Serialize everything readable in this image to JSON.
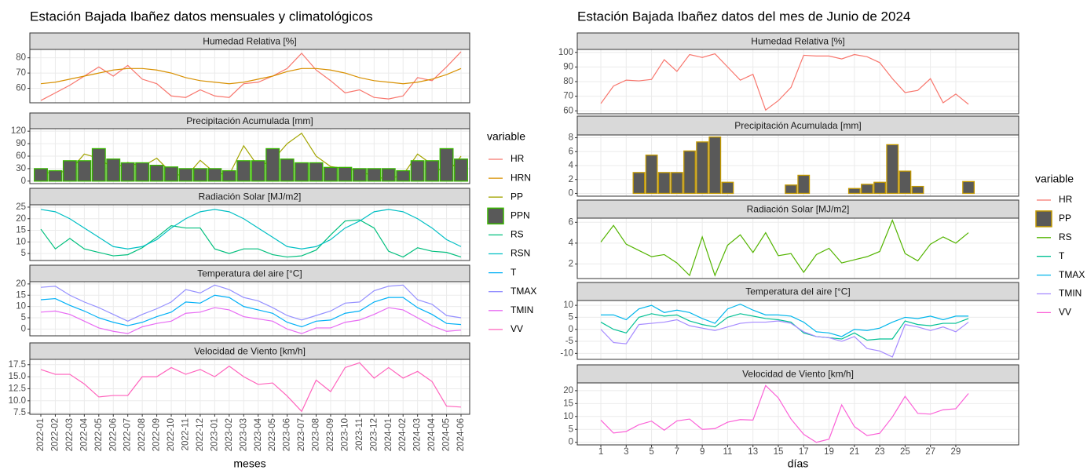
{
  "chart_data": [
    {
      "type": "line",
      "title": "Estación Bajada Ibañez datos mensuales y climatológicos",
      "xlabel": "meses",
      "legend_title": "variable",
      "categories": [
        "2022-01",
        "2022-02",
        "2022-03",
        "2022-04",
        "2022-05",
        "2022-06",
        "2022-07",
        "2022-08",
        "2022-09",
        "2022-10",
        "2022-11",
        "2022-12",
        "2023-01",
        "2023-02",
        "2023-03",
        "2023-04",
        "2023-05",
        "2023-06",
        "2023-07",
        "2023-08",
        "2023-09",
        "2023-10",
        "2023-11",
        "2023-12",
        "2024-01",
        "2024-02",
        "2024-03",
        "2024-04",
        "2024-05",
        "2024-06"
      ],
      "panels": [
        {
          "strip": "Humedad Relativa [%]",
          "ylim": [
            50.5,
            85.5
          ],
          "yticks": [
            60,
            70,
            80
          ],
          "series": [
            {
              "name": "HR",
              "color": "#F8766D",
              "values": [
                52,
                57,
                62,
                68,
                74,
                68,
                75,
                66,
                63,
                55,
                54,
                59,
                55,
                54,
                63,
                64,
                68,
                73,
                83,
                72,
                65,
                57,
                59,
                54,
                53,
                55,
                67,
                65,
                74,
                84
              ]
            },
            {
              "name": "HRN",
              "color": "#D89000",
              "values": [
                63,
                64,
                66,
                68,
                70,
                72,
                73,
                73,
                72,
                70,
                67,
                65,
                64,
                63,
                64,
                66,
                68,
                71,
                73,
                73,
                72,
                70,
                67,
                65,
                64,
                63,
                64,
                66,
                69,
                73
              ]
            }
          ]
        },
        {
          "strip": "Precipitación Acumulada [mm]",
          "ylim": [
            -6,
            126
          ],
          "yticks": [
            0,
            30,
            60,
            90,
            120
          ],
          "series": [
            {
              "name": "PP",
              "color": "#A3A500",
              "values": [
                20,
                20,
                25,
                65,
                55,
                30,
                45,
                35,
                55,
                20,
                10,
                50,
                20,
                15,
                85,
                35,
                50,
                90,
                115,
                60,
                35,
                30,
                25,
                10,
                5,
                15,
                65,
                40,
                15,
                60
              ]
            },
            {
              "name": "PPN",
              "type": "bar",
              "color": "#39B600",
              "fill": "#595959",
              "values": [
                30,
                25,
                49,
                49,
                78,
                53,
                44,
                44,
                38,
                34,
                30,
                30,
                30,
                25,
                49,
                49,
                78,
                53,
                44,
                44,
                33,
                33,
                30,
                30,
                30,
                25,
                49,
                49,
                78,
                53
              ]
            }
          ]
        },
        {
          "strip": "Radiación Solar [MJ/m2]",
          "ylim": [
            2,
            26
          ],
          "yticks": [
            5,
            10,
            15,
            20,
            25
          ],
          "series": [
            {
              "name": "RS",
              "color": "#00BF7D",
              "values": [
                15.5,
                7,
                11.5,
                7,
                5.5,
                4,
                4.5,
                7.5,
                12,
                17,
                16,
                16,
                7,
                5,
                7,
                7,
                4.5,
                3.5,
                4,
                6.5,
                13,
                19,
                19.5,
                16,
                6,
                3.5,
                7.5,
                6,
                5.5,
                3.5
              ]
            },
            {
              "name": "RSN",
              "color": "#00BFC4",
              "values": [
                24,
                23,
                20,
                16,
                12,
                8,
                7,
                8,
                11,
                16,
                20,
                23,
                24,
                23,
                20,
                16,
                12,
                8,
                7,
                8,
                11,
                16,
                19,
                23,
                24,
                23,
                20,
                16,
                11,
                8
              ]
            }
          ]
        },
        {
          "strip": "Temperatura del aire [°C]",
          "ylim": [
            -3,
            21
          ],
          "yticks": [
            0,
            5,
            10,
            15,
            20
          ],
          "series": [
            {
              "name": "T",
              "color": "#00B0F6",
              "values": [
                13,
                13.5,
                10.5,
                8,
                5,
                3,
                1.5,
                3,
                5.5,
                7.5,
                12,
                11.5,
                15,
                14,
                10,
                8.5,
                7,
                3,
                1,
                3.5,
                4,
                7,
                8,
                12,
                14,
                14,
                9.5,
                6.5,
                2.5,
                2
              ]
            },
            {
              "name": "TMAX",
              "color": "#9590FF",
              "values": [
                18.5,
                19,
                15,
                12,
                9.5,
                6.5,
                3.5,
                6.5,
                9,
                12,
                17.5,
                16,
                19.5,
                17.5,
                14,
                12.5,
                9.5,
                6,
                4,
                6,
                8,
                11.5,
                12,
                17,
                19,
                19.5,
                13,
                11,
                6,
                5
              ]
            },
            {
              "name": "TMIN",
              "color": "#E76BF3",
              "values": [
                7.5,
                8,
                6.5,
                3.5,
                0.5,
                -1,
                -2,
                1,
                2.5,
                3.5,
                7,
                7.5,
                9.5,
                8.5,
                5.5,
                4.5,
                3.5,
                0,
                -2,
                0.5,
                0.5,
                3,
                4,
                6.5,
                9.5,
                8.5,
                5,
                1.5,
                -1,
                -0.5
              ]
            }
          ]
        },
        {
          "strip": "Velocidad de Viento [km/h]",
          "ylim": [
            7.2,
            18.6
          ],
          "yticks": [
            7.5,
            {
              "value": 10,
              "label": "10.0"
            },
            12.5,
            {
              "value": 15,
              "label": "15.0"
            },
            17.5
          ],
          "series": [
            {
              "name": "VV",
              "color": "#FF62BC",
              "values": [
                16.5,
                15.5,
                15.5,
                13.5,
                10.8,
                11.1,
                11.1,
                15,
                15,
                16.9,
                15.5,
                16.5,
                15,
                17.2,
                15,
                13.4,
                13.7,
                11,
                7.8,
                14.3,
                11.9,
                16.9,
                17.9,
                14.7,
                16.9,
                14.7,
                16.1,
                14,
                8.9,
                8.7
              ]
            }
          ]
        }
      ]
    },
    {
      "type": "line",
      "title": "Estación Bajada Ibañez datos del mes de Junio de 2024",
      "xlabel": "días",
      "legend_title": "variable",
      "x": [
        1,
        2,
        3,
        4,
        5,
        6,
        7,
        8,
        9,
        10,
        11,
        12,
        13,
        14,
        15,
        16,
        17,
        18,
        19,
        20,
        21,
        22,
        23,
        24,
        25,
        26,
        27,
        28,
        29,
        30
      ],
      "xlim": [
        -0.86,
        33.96
      ],
      "xticks": [
        1,
        3,
        5,
        7,
        9,
        11,
        13,
        15,
        17,
        19,
        21,
        23,
        25,
        27,
        29
      ],
      "panels": [
        {
          "strip": "Humedad Relativa [%]",
          "ylim": [
            58,
            102
          ],
          "yticks": [
            60,
            70,
            80,
            90,
            100
          ],
          "series": [
            {
              "name": "HR",
              "color": "#F8766D",
              "values": [
                65,
                77,
                81,
                80.5,
                81.5,
                95,
                87,
                98.5,
                96.5,
                99,
                90,
                81,
                85,
                60.5,
                67,
                76,
                98,
                97.5,
                97.5,
                95.5,
                98.5,
                97,
                93,
                82,
                72.5,
                74,
                82,
                65.5,
                71.5,
                64.5
              ]
            }
          ]
        },
        {
          "strip": "Precipitación Acumulada [mm]",
          "ylim": [
            -0.4,
            8.4
          ],
          "yticks": [
            0,
            2,
            4,
            6,
            8
          ],
          "series": [
            {
              "name": "PP",
              "type": "bar",
              "color": "#C49A00",
              "fill": "#595959",
              "values": [
                0,
                0,
                0,
                3,
                5.5,
                3,
                3,
                6.1,
                7.4,
                8.1,
                1.6,
                0,
                0,
                0,
                0,
                1.2,
                2.6,
                0,
                0,
                0,
                0.7,
                1.3,
                1.6,
                7,
                3.2,
                1,
                0,
                0,
                0,
                1.7
              ]
            }
          ]
        },
        {
          "strip": "Radiación Solar [MJ/m2]",
          "ylim": [
            0.6,
            6.4
          ],
          "yticks": [
            2,
            4,
            6
          ],
          "series": [
            {
              "name": "RS",
              "color": "#53B400",
              "values": [
                4.1,
                5.7,
                3.9,
                3.3,
                2.7,
                2.9,
                2.1,
                0.9,
                4.6,
                0.9,
                3.8,
                4.8,
                3.1,
                5,
                2.8,
                3,
                1.2,
                2.9,
                3.5,
                2.1,
                2.4,
                2.7,
                3.2,
                6.2,
                3,
                2.3,
                3.9,
                4.6,
                4,
                5
              ]
            }
          ]
        },
        {
          "strip": "Temperatura del aire [°C]",
          "ylim": [
            -12.5,
            12
          ],
          "yticks": [
            -10,
            -5,
            0,
            5,
            10
          ],
          "series": [
            {
              "name": "T",
              "color": "#00C094",
              "values": [
                3,
                0,
                -1.5,
                5,
                6.5,
                5.5,
                6,
                3.5,
                2,
                1,
                5,
                6.5,
                5.5,
                4.5,
                4,
                3,
                -1.5,
                -3,
                -3.5,
                -4,
                -1.5,
                -4.5,
                -4,
                -4,
                3.5,
                2,
                1.5,
                2.5,
                2.5,
                4.5
              ]
            },
            {
              "name": "TMAX",
              "color": "#00B6EB",
              "values": [
                6,
                6,
                4,
                8.5,
                10,
                7,
                8,
                7,
                4.5,
                2.5,
                8.5,
                10.5,
                8,
                6,
                6,
                5.5,
                3,
                -1,
                -1.5,
                -3,
                0,
                -0.5,
                0.5,
                3,
                5,
                4.5,
                5.5,
                4,
                5.5,
                5.5
              ]
            },
            {
              "name": "TMIN",
              "color": "#A58AFF",
              "values": [
                0,
                -5.5,
                -6,
                2,
                2.5,
                3,
                4,
                1.5,
                0.5,
                -0.5,
                1,
                2.5,
                3,
                3,
                3.5,
                2.5,
                -1,
                -3,
                -3.5,
                -5,
                -3,
                -8,
                -9,
                -11.5,
                2,
                1,
                -0.5,
                1,
                -1,
                3
              ]
            }
          ]
        },
        {
          "strip": "Velocidad de Viento [km/h]",
          "ylim": [
            -1,
            23
          ],
          "yticks": [
            0,
            5,
            10,
            15,
            20
          ],
          "series": [
            {
              "name": "VV",
              "color": "#FB61D7",
              "values": [
                8.6,
                3.6,
                4.2,
                6.8,
                8.2,
                4.7,
                8.3,
                9,
                5,
                5.3,
                7.8,
                8.8,
                8.6,
                22,
                17.2,
                9,
                3.1,
                0,
                1.2,
                14.5,
                6.1,
                2.6,
                3.5,
                9.8,
                17.8,
                11.2,
                10.9,
                12.6,
                13,
                18.9
              ]
            }
          ]
        }
      ]
    }
  ]
}
